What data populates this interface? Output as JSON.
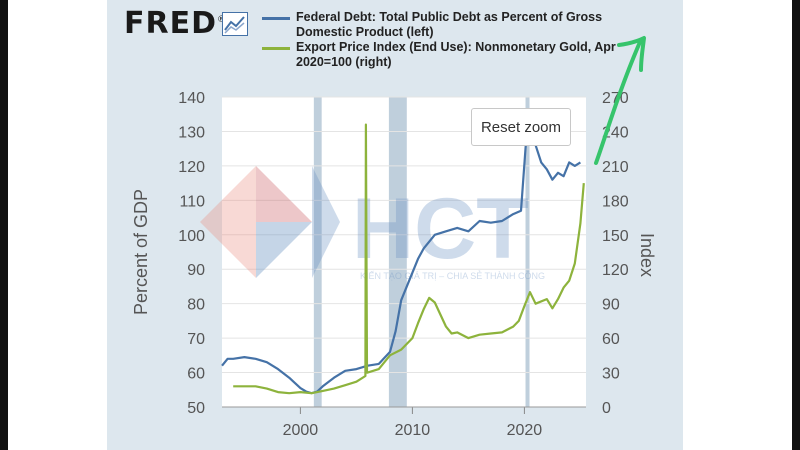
{
  "header": {
    "logo_text": "FRED",
    "logo_mark": "®",
    "logo_icon": "line-chart-icon"
  },
  "reset_zoom_label": "Reset zoom",
  "watermark": {
    "text": "HCT",
    "tagline": "KIẾN TẠO GIÁ TRỊ – CHIA SẺ THÀNH CÔNG"
  },
  "colors": {
    "debt": "#4572a7",
    "gold": "#8db33c",
    "recession": "#bfcfdc",
    "annotation": "#36c46b",
    "panel": "#dde7ee"
  },
  "chart_data": {
    "type": "line",
    "title": "",
    "xlabel": "",
    "ylabel_left": "Percent of GDP",
    "ylabel_right": "Index",
    "xlim": [
      1993,
      2025.5
    ],
    "ylim_left": [
      50,
      140
    ],
    "ylim_right": [
      0,
      270
    ],
    "left_ticks": [
      50,
      60,
      70,
      80,
      90,
      100,
      110,
      120,
      130,
      140
    ],
    "right_ticks": [
      0,
      30,
      60,
      90,
      120,
      150,
      180,
      210,
      240,
      270
    ],
    "x_ticks": [
      2000,
      2010,
      2020
    ],
    "recessions": [
      [
        2001.2,
        2001.9
      ],
      [
        2007.9,
        2009.5
      ],
      [
        2020.1,
        2020.4
      ]
    ],
    "series": [
      {
        "name": "Federal Debt: Total Public Debt as Percent of Gross Domestic Product (left)",
        "axis": "left",
        "x": [
          1993,
          1993.5,
          1994,
          1995,
          1996,
          1997,
          1998,
          1999,
          2000,
          2000.5,
          2001,
          2001.5,
          2002,
          2003,
          2004,
          2005,
          2006,
          2007,
          2008,
          2008.5,
          2009,
          2009.5,
          2010,
          2010.5,
          2011,
          2011.5,
          2012,
          2013,
          2014,
          2015,
          2016,
          2017,
          2018,
          2019,
          2019.7,
          2020.1,
          2020.3,
          2020.6,
          2021,
          2021.5,
          2022,
          2022.5,
          2023,
          2023.5,
          2024,
          2024.5,
          2025
        ],
        "values": [
          62,
          64,
          64,
          64.5,
          64,
          63,
          61,
          58.5,
          55.5,
          54.5,
          54,
          54.5,
          56,
          58.5,
          60.5,
          61,
          62,
          62.5,
          66,
          72,
          81,
          85,
          89,
          93,
          96,
          98,
          100,
          101,
          102,
          101,
          104,
          103.5,
          104,
          106,
          107,
          125,
          133,
          127,
          126,
          121,
          119,
          116,
          118,
          117,
          121,
          120,
          121
        ]
      },
      {
        "name": "Export Price Index (End Use): Nonmonetary Gold, Apr 2020=100 (right)",
        "axis": "right",
        "x": [
          1994,
          1995,
          1996,
          1997,
          1998,
          1999,
          2000,
          2001,
          2002,
          2003,
          2004,
          2005,
          2005.8,
          2005.85,
          2005.95,
          2006,
          2007,
          2008,
          2009,
          2010,
          2010.5,
          2011,
          2011.5,
          2012,
          2013,
          2013.5,
          2014,
          2015,
          2016,
          2017,
          2018,
          2019,
          2019.5,
          2020,
          2020.5,
          2021,
          2022,
          2022.5,
          2023,
          2023.5,
          2024,
          2024.5,
          2025,
          2025.3
        ],
        "values": [
          18,
          18,
          18,
          16,
          13,
          12,
          13,
          12,
          14,
          16,
          19,
          22,
          27,
          246,
          30,
          30,
          33,
          45,
          50,
          60,
          73,
          85,
          95,
          91,
          70,
          64,
          65,
          60,
          63,
          64,
          65,
          70,
          75,
          88,
          100,
          90,
          94,
          86,
          94,
          104,
          110,
          125,
          160,
          195
        ]
      }
    ],
    "annotations": [
      "green hand-drawn arrow pointing up-right at latest gold value"
    ]
  }
}
